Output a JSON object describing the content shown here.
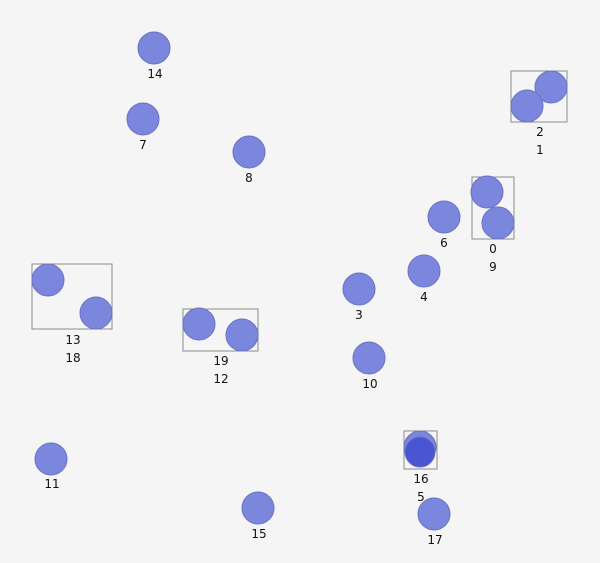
{
  "diagram": {
    "nodes": [
      {
        "id": "n14",
        "label": "14"
      },
      {
        "id": "n7",
        "label": "7"
      },
      {
        "id": "n8",
        "label": "8"
      },
      {
        "id": "n6",
        "label": "6"
      },
      {
        "id": "n4",
        "label": "4"
      },
      {
        "id": "n3",
        "label": "3"
      },
      {
        "id": "n10",
        "label": "10"
      },
      {
        "id": "n11",
        "label": "11"
      },
      {
        "id": "n15",
        "label": "15"
      },
      {
        "id": "n17",
        "label": "17"
      }
    ],
    "groups": [
      {
        "id": "g2-1",
        "labels": [
          "2",
          "1"
        ]
      },
      {
        "id": "g0-9",
        "labels": [
          "0",
          "9"
        ]
      },
      {
        "id": "g13-18",
        "labels": [
          "13",
          "18"
        ]
      },
      {
        "id": "g19-12",
        "labels": [
          "19",
          "12"
        ]
      },
      {
        "id": "g16-5",
        "labels": [
          "16",
          "5"
        ]
      }
    ]
  }
}
